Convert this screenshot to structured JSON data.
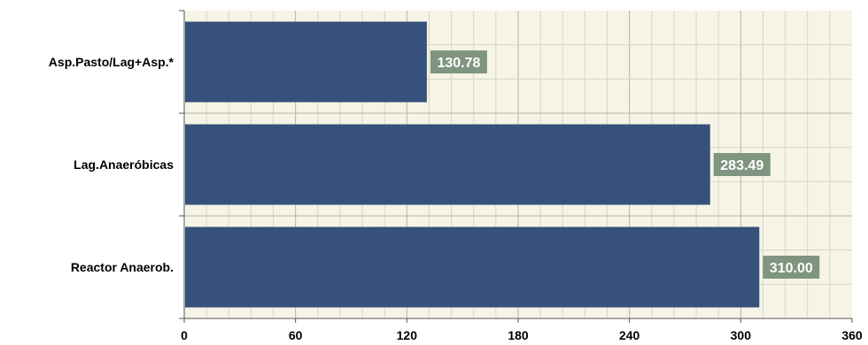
{
  "chart_data": {
    "type": "bar",
    "orientation": "horizontal",
    "title": "",
    "categories": [
      "Asp.Pasto/Lag+Asp.*",
      "Lag.Anaeróbicas",
      "Reactor Anaerob."
    ],
    "values": [
      130.78,
      283.49,
      310.0
    ],
    "value_labels": [
      "130.78",
      "283.49",
      "310.00"
    ],
    "xlim": [
      0,
      360
    ],
    "x_ticks": [
      0,
      60,
      120,
      180,
      240,
      300,
      360
    ],
    "xlabel": "",
    "ylabel": "",
    "grid": true,
    "legend": "none",
    "colors": {
      "bar": "#36517b",
      "label_box": "#7f9580",
      "plot_background": "#f6f4e6",
      "grid_minor": "#d8d6c6",
      "grid_major": "#b6b4a6"
    }
  }
}
